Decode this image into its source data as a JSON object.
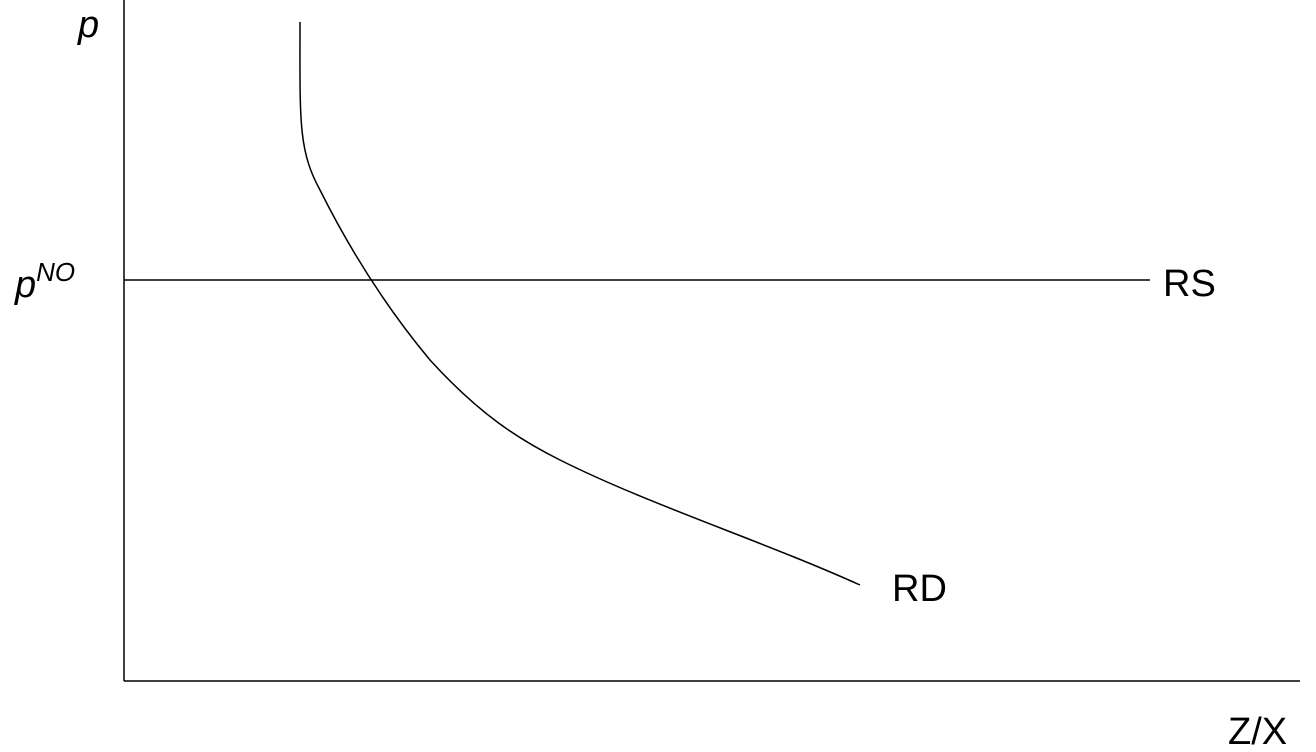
{
  "diagram": {
    "y_axis_label": "p",
    "price_label_base": "p",
    "price_label_sup": "NO",
    "supply_curve_label": "RS",
    "demand_curve_label": "RD",
    "x_axis_label": "Z/X",
    "line_color": "#000000",
    "background": "#ffffff"
  }
}
